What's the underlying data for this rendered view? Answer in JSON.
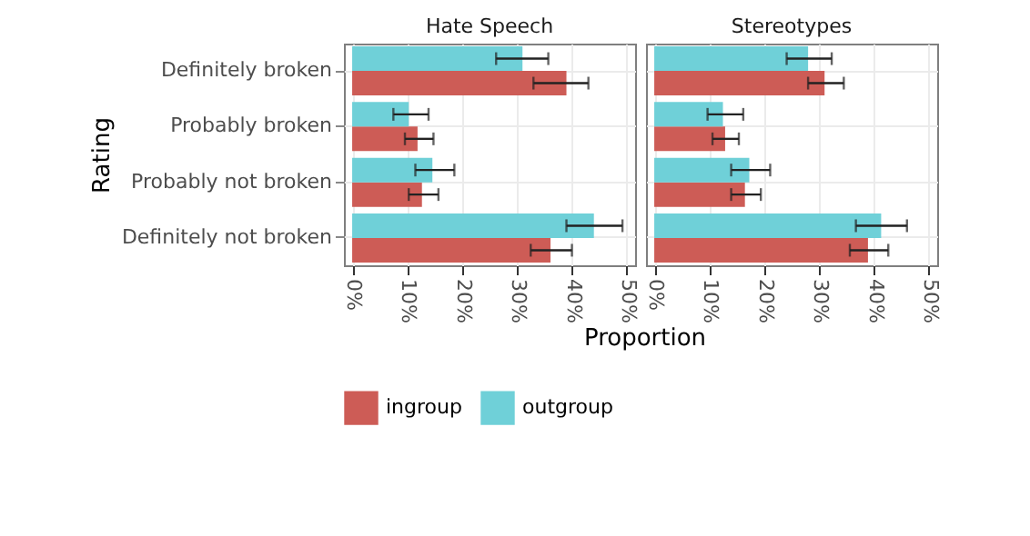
{
  "chart_data": [
    {
      "type": "bar",
      "orientation": "horizontal",
      "title": "Hate Speech",
      "xlabel": "Proportion",
      "ylabel": "Rating",
      "categories": [
        "Definitely broken",
        "Probably broken",
        "Probably not broken",
        "Definitely not broken"
      ],
      "series": [
        {
          "name": "ingroup",
          "color": "#cd5c56",
          "values": [
            39,
            11.9,
            12.7,
            36.1
          ],
          "errors": [
            [
              33,
              43
            ],
            [
              9.6,
              14.8
            ],
            [
              10.3,
              15.7
            ],
            [
              32.5,
              40
            ]
          ]
        },
        {
          "name": "outgroup",
          "color": "#6fd0d8",
          "values": [
            31,
            10.3,
            14.6,
            44
          ],
          "errors": [
            [
              26.2,
              35.7
            ],
            [
              7.5,
              13.9
            ],
            [
              11.5,
              18.6
            ],
            [
              39,
              49.2
            ]
          ]
        }
      ],
      "xlim": [
        -1.5,
        51.5
      ],
      "xticks": [
        {
          "value": 0,
          "label": "0%"
        },
        {
          "value": 10,
          "label": "10%"
        },
        {
          "value": 20,
          "label": "20%"
        },
        {
          "value": 30,
          "label": "30%"
        },
        {
          "value": 40,
          "label": "40%"
        },
        {
          "value": 50,
          "label": "50%"
        }
      ],
      "grid": true,
      "legend": "bottom"
    },
    {
      "type": "bar",
      "orientation": "horizontal",
      "title": "Stereotypes",
      "categories": [
        null,
        null,
        null,
        null
      ],
      "series": [
        {
          "name": "ingroup",
          "color": "#cd5c56",
          "values": [
            31,
            12.9,
            16.5,
            38.9
          ],
          "errors": [
            [
              28,
              34.5
            ],
            [
              10.6,
              15.4
            ],
            [
              14,
              19.4
            ],
            [
              35.6,
              42.6
            ]
          ]
        },
        {
          "name": "outgroup",
          "color": "#6fd0d8",
          "values": [
            28,
            12.5,
            17.3,
            41.3
          ],
          "errors": [
            [
              24.1,
              32.3
            ],
            [
              9.7,
              16.2
            ],
            [
              14,
              21.1
            ],
            [
              36.7,
              46
            ]
          ]
        }
      ],
      "xlim": [
        -1.5,
        51.5
      ],
      "xticks": [
        {
          "value": 0,
          "label": "0%"
        },
        {
          "value": 10,
          "label": "10%"
        },
        {
          "value": 20,
          "label": "20%"
        },
        {
          "value": 30,
          "label": "30%"
        },
        {
          "value": 40,
          "label": "40%"
        },
        {
          "value": 50,
          "label": "50%"
        }
      ],
      "grid": true,
      "legend": "bottom",
      "tick_labels": "x"
    }
  ]
}
